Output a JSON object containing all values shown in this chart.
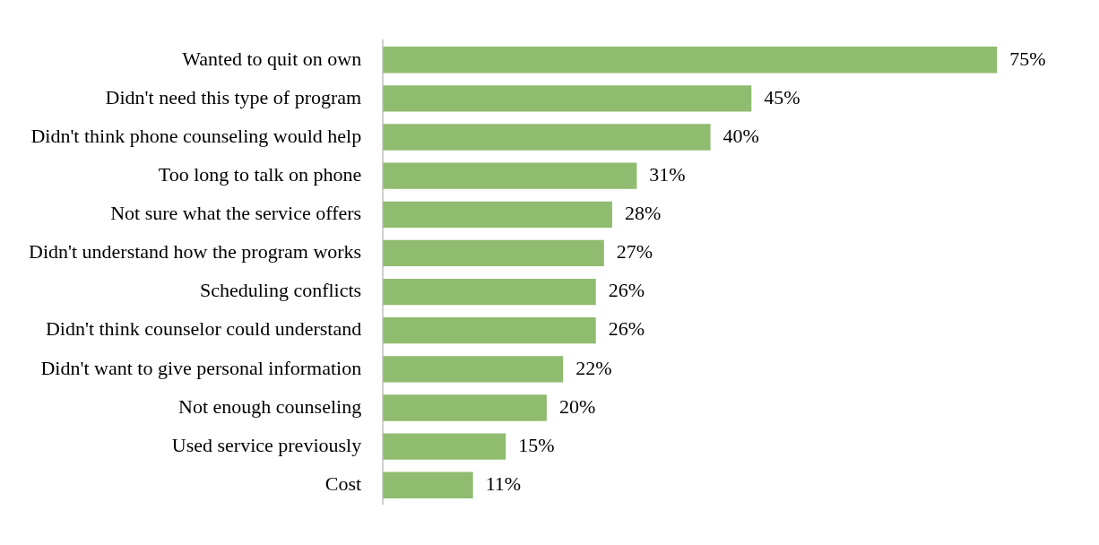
{
  "chart_data": {
    "type": "bar",
    "orientation": "horizontal",
    "categories": [
      "Wanted to quit on own",
      "Didn't need this type of program",
      "Didn't think phone counseling would help",
      "Too long to talk on phone",
      "Not sure what the service offers",
      "Didn't understand how the program works",
      "Scheduling conflicts",
      "Didn't think counselor could understand",
      "Didn't want to give personal information",
      "Not enough counseling",
      "Used service previously",
      "Cost"
    ],
    "values": [
      75,
      45,
      40,
      31,
      28,
      27,
      26,
      26,
      22,
      20,
      15,
      11
    ],
    "value_labels": [
      "75%",
      "45%",
      "40%",
      "31%",
      "28%",
      "27%",
      "26%",
      "26%",
      "22%",
      "20%",
      "15%",
      "11%"
    ],
    "color": "#8fbc6f",
    "grid": false,
    "legend": false
  }
}
